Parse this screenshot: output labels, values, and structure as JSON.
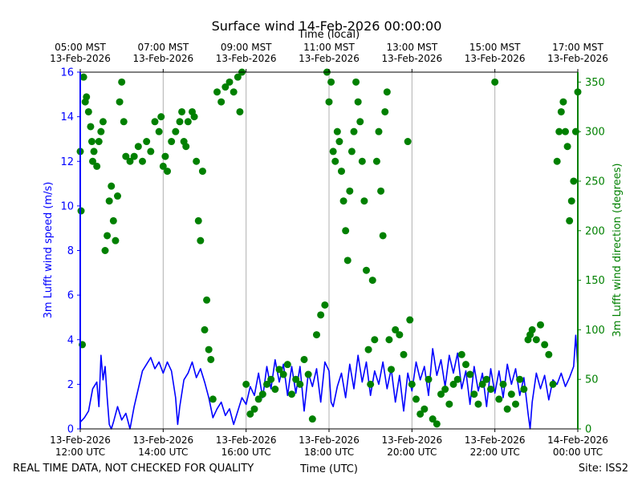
{
  "chart_data": {
    "type": "line+scatter",
    "title": "Surface wind 14-Feb-2026 00:00:00",
    "top_axis_label": "Time (local)",
    "xlabel": "Time (UTC)",
    "ylabel_left": "3m Lufft wind speed (m/s)",
    "ylabel_right": "3m Lufft wind direction (degrees)",
    "footer_left": "REAL TIME DATA, NOT CHECKED FOR QUALITY",
    "footer_right": "Site: ISS2",
    "x_range_hours": [
      0,
      12
    ],
    "ylim_left": [
      0,
      16
    ],
    "ylim_right": [
      0,
      360
    ],
    "grid": "vertical",
    "colors": {
      "speed": "#0000ff",
      "direction": "#008000",
      "grid": "#b0b0b0",
      "text": "#000000"
    },
    "top_ticks": [
      {
        "hour": 0,
        "line1": "05:00 MST",
        "line2": "13-Feb-2026"
      },
      {
        "hour": 2,
        "line1": "07:00 MST",
        "line2": "13-Feb-2026"
      },
      {
        "hour": 4,
        "line1": "09:00 MST",
        "line2": "13-Feb-2026"
      },
      {
        "hour": 6,
        "line1": "11:00 MST",
        "line2": "13-Feb-2026"
      },
      {
        "hour": 8,
        "line1": "13:00 MST",
        "line2": "13-Feb-2026"
      },
      {
        "hour": 10,
        "line1": "15:00 MST",
        "line2": "13-Feb-2026"
      },
      {
        "hour": 12,
        "line1": "17:00 MST",
        "line2": "13-Feb-2026"
      }
    ],
    "bottom_ticks": [
      {
        "hour": 0,
        "line1": "13-Feb-2026",
        "line2": "12:00 UTC"
      },
      {
        "hour": 2,
        "line1": "13-Feb-2026",
        "line2": "14:00 UTC"
      },
      {
        "hour": 4,
        "line1": "13-Feb-2026",
        "line2": "16:00 UTC"
      },
      {
        "hour": 6,
        "line1": "13-Feb-2026",
        "line2": "18:00 UTC"
      },
      {
        "hour": 8,
        "line1": "13-Feb-2026",
        "line2": "20:00 UTC"
      },
      {
        "hour": 10,
        "line1": "13-Feb-2026",
        "line2": "22:00 UTC"
      },
      {
        "hour": 12,
        "line1": "14-Feb-2026",
        "line2": "00:00 UTC"
      }
    ],
    "left_ticks": [
      0,
      2,
      4,
      6,
      8,
      10,
      12,
      14,
      16
    ],
    "right_ticks": [
      0,
      50,
      100,
      150,
      200,
      250,
      300,
      350
    ],
    "series": [
      {
        "name": "3m Lufft wind speed (m/s)",
        "kind": "line",
        "axis": "left",
        "points": [
          [
            0.0,
            0.3
          ],
          [
            0.1,
            0.5
          ],
          [
            0.2,
            0.8
          ],
          [
            0.3,
            1.8
          ],
          [
            0.4,
            2.1
          ],
          [
            0.45,
            1.0
          ],
          [
            0.5,
            3.3
          ],
          [
            0.55,
            2.2
          ],
          [
            0.6,
            2.8
          ],
          [
            0.65,
            1.4
          ],
          [
            0.7,
            0.2
          ],
          [
            0.75,
            0.0
          ],
          [
            0.8,
            0.3
          ],
          [
            0.9,
            1.0
          ],
          [
            1.0,
            0.4
          ],
          [
            1.1,
            0.7
          ],
          [
            1.2,
            0.0
          ],
          [
            1.25,
            0.5
          ],
          [
            1.3,
            1.0
          ],
          [
            1.4,
            1.8
          ],
          [
            1.5,
            2.6
          ],
          [
            1.6,
            2.9
          ],
          [
            1.7,
            3.2
          ],
          [
            1.8,
            2.7
          ],
          [
            1.9,
            3.0
          ],
          [
            2.0,
            2.5
          ],
          [
            2.1,
            3.0
          ],
          [
            2.2,
            2.6
          ],
          [
            2.3,
            1.4
          ],
          [
            2.35,
            0.2
          ],
          [
            2.4,
            1.0
          ],
          [
            2.5,
            2.2
          ],
          [
            2.6,
            2.5
          ],
          [
            2.7,
            3.0
          ],
          [
            2.8,
            2.3
          ],
          [
            2.9,
            2.7
          ],
          [
            3.0,
            2.1
          ],
          [
            3.1,
            1.4
          ],
          [
            3.2,
            0.5
          ],
          [
            3.3,
            0.9
          ],
          [
            3.4,
            1.2
          ],
          [
            3.5,
            0.6
          ],
          [
            3.6,
            0.9
          ],
          [
            3.7,
            0.2
          ],
          [
            3.8,
            0.8
          ],
          [
            3.9,
            1.4
          ],
          [
            4.0,
            1.1
          ],
          [
            4.1,
            1.9
          ],
          [
            4.2,
            1.5
          ],
          [
            4.3,
            2.5
          ],
          [
            4.4,
            1.4
          ],
          [
            4.5,
            2.8
          ],
          [
            4.6,
            1.8
          ],
          [
            4.7,
            3.1
          ],
          [
            4.8,
            2.1
          ],
          [
            4.9,
            2.9
          ],
          [
            5.0,
            1.5
          ],
          [
            5.1,
            2.8
          ],
          [
            5.2,
            1.6
          ],
          [
            5.3,
            2.8
          ],
          [
            5.4,
            0.8
          ],
          [
            5.5,
            2.5
          ],
          [
            5.6,
            1.9
          ],
          [
            5.7,
            2.7
          ],
          [
            5.8,
            1.2
          ],
          [
            5.9,
            3.0
          ],
          [
            6.0,
            2.6
          ],
          [
            6.05,
            1.2
          ],
          [
            6.1,
            1.0
          ],
          [
            6.2,
            1.9
          ],
          [
            6.3,
            2.5
          ],
          [
            6.4,
            1.4
          ],
          [
            6.5,
            2.9
          ],
          [
            6.6,
            1.8
          ],
          [
            6.7,
            3.3
          ],
          [
            6.8,
            2.1
          ],
          [
            6.9,
            3.0
          ],
          [
            7.0,
            1.5
          ],
          [
            7.1,
            2.6
          ],
          [
            7.2,
            2.0
          ],
          [
            7.3,
            3.0
          ],
          [
            7.4,
            1.8
          ],
          [
            7.5,
            2.7
          ],
          [
            7.6,
            1.2
          ],
          [
            7.7,
            2.4
          ],
          [
            7.8,
            0.8
          ],
          [
            7.9,
            2.5
          ],
          [
            8.0,
            1.7
          ],
          [
            8.1,
            3.0
          ],
          [
            8.2,
            2.2
          ],
          [
            8.3,
            2.8
          ],
          [
            8.4,
            1.5
          ],
          [
            8.5,
            3.6
          ],
          [
            8.6,
            2.4
          ],
          [
            8.7,
            3.1
          ],
          [
            8.8,
            1.9
          ],
          [
            8.9,
            3.3
          ],
          [
            9.0,
            2.5
          ],
          [
            9.1,
            3.4
          ],
          [
            9.2,
            1.8
          ],
          [
            9.3,
            2.6
          ],
          [
            9.4,
            1.1
          ],
          [
            9.5,
            2.8
          ],
          [
            9.6,
            1.7
          ],
          [
            9.7,
            2.5
          ],
          [
            9.8,
            1.0
          ],
          [
            9.9,
            2.7
          ],
          [
            10.0,
            1.6
          ],
          [
            10.1,
            2.6
          ],
          [
            10.2,
            1.4
          ],
          [
            10.3,
            2.9
          ],
          [
            10.4,
            2.0
          ],
          [
            10.5,
            2.7
          ],
          [
            10.6,
            1.5
          ],
          [
            10.7,
            2.3
          ],
          [
            10.8,
            0.7
          ],
          [
            10.85,
            0.0
          ],
          [
            10.9,
            1.2
          ],
          [
            11.0,
            2.5
          ],
          [
            11.1,
            1.8
          ],
          [
            11.2,
            2.4
          ],
          [
            11.3,
            1.3
          ],
          [
            11.4,
            2.2
          ],
          [
            11.5,
            2.0
          ],
          [
            11.6,
            2.5
          ],
          [
            11.7,
            1.9
          ],
          [
            11.8,
            2.3
          ],
          [
            11.9,
            2.8
          ],
          [
            11.95,
            4.2
          ],
          [
            12.0,
            2.8
          ]
        ]
      },
      {
        "name": "3m Lufft wind direction (degrees)",
        "kind": "scatter",
        "axis": "right",
        "points": [
          [
            0.0,
            280
          ],
          [
            0.02,
            220
          ],
          [
            0.05,
            85
          ],
          [
            0.08,
            355
          ],
          [
            0.12,
            330
          ],
          [
            0.15,
            335
          ],
          [
            0.2,
            320
          ],
          [
            0.25,
            305
          ],
          [
            0.28,
            290
          ],
          [
            0.3,
            270
          ],
          [
            0.33,
            280
          ],
          [
            0.4,
            265
          ],
          [
            0.45,
            290
          ],
          [
            0.5,
            300
          ],
          [
            0.55,
            310
          ],
          [
            0.6,
            180
          ],
          [
            0.65,
            195
          ],
          [
            0.7,
            230
          ],
          [
            0.75,
            245
          ],
          [
            0.8,
            210
          ],
          [
            0.85,
            190
          ],
          [
            0.9,
            235
          ],
          [
            0.95,
            330
          ],
          [
            1.0,
            350
          ],
          [
            1.05,
            310
          ],
          [
            1.1,
            275
          ],
          [
            1.2,
            270
          ],
          [
            1.3,
            275
          ],
          [
            1.4,
            285
          ],
          [
            1.5,
            270
          ],
          [
            1.6,
            290
          ],
          [
            1.7,
            280
          ],
          [
            1.8,
            310
          ],
          [
            1.9,
            300
          ],
          [
            1.95,
            315
          ],
          [
            2.0,
            265
          ],
          [
            2.05,
            275
          ],
          [
            2.1,
            260
          ],
          [
            2.2,
            290
          ],
          [
            2.3,
            300
          ],
          [
            2.4,
            310
          ],
          [
            2.45,
            320
          ],
          [
            2.5,
            290
          ],
          [
            2.55,
            285
          ],
          [
            2.6,
            310
          ],
          [
            2.7,
            320
          ],
          [
            2.75,
            315
          ],
          [
            2.8,
            270
          ],
          [
            2.85,
            210
          ],
          [
            2.9,
            190
          ],
          [
            2.95,
            260
          ],
          [
            3.0,
            100
          ],
          [
            3.05,
            130
          ],
          [
            3.1,
            80
          ],
          [
            3.15,
            70
          ],
          [
            3.2,
            30
          ],
          [
            3.3,
            340
          ],
          [
            3.4,
            330
          ],
          [
            3.5,
            345
          ],
          [
            3.6,
            350
          ],
          [
            3.7,
            340
          ],
          [
            3.8,
            355
          ],
          [
            3.85,
            320
          ],
          [
            3.9,
            360
          ],
          [
            4.0,
            45
          ],
          [
            4.1,
            15
          ],
          [
            4.2,
            20
          ],
          [
            4.3,
            30
          ],
          [
            4.4,
            35
          ],
          [
            4.5,
            45
          ],
          [
            4.6,
            50
          ],
          [
            4.7,
            40
          ],
          [
            4.8,
            60
          ],
          [
            4.9,
            55
          ],
          [
            5.0,
            65
          ],
          [
            5.1,
            35
          ],
          [
            5.2,
            50
          ],
          [
            5.3,
            45
          ],
          [
            5.4,
            70
          ],
          [
            5.5,
            55
          ],
          [
            5.6,
            10
          ],
          [
            5.7,
            95
          ],
          [
            5.8,
            115
          ],
          [
            5.9,
            125
          ],
          [
            5.95,
            360
          ],
          [
            6.0,
            330
          ],
          [
            6.05,
            350
          ],
          [
            6.1,
            280
          ],
          [
            6.15,
            270
          ],
          [
            6.2,
            300
          ],
          [
            6.25,
            290
          ],
          [
            6.3,
            260
          ],
          [
            6.35,
            230
          ],
          [
            6.4,
            200
          ],
          [
            6.45,
            170
          ],
          [
            6.5,
            240
          ],
          [
            6.55,
            280
          ],
          [
            6.6,
            300
          ],
          [
            6.65,
            350
          ],
          [
            6.7,
            330
          ],
          [
            6.75,
            310
          ],
          [
            6.8,
            270
          ],
          [
            6.85,
            230
          ],
          [
            6.9,
            160
          ],
          [
            6.95,
            80
          ],
          [
            7.0,
            45
          ],
          [
            7.05,
            150
          ],
          [
            7.1,
            90
          ],
          [
            7.15,
            270
          ],
          [
            7.2,
            300
          ],
          [
            7.25,
            240
          ],
          [
            7.3,
            195
          ],
          [
            7.35,
            320
          ],
          [
            7.4,
            340
          ],
          [
            7.45,
            90
          ],
          [
            7.5,
            60
          ],
          [
            7.6,
            100
          ],
          [
            7.7,
            95
          ],
          [
            7.8,
            75
          ],
          [
            7.9,
            290
          ],
          [
            7.95,
            110
          ],
          [
            8.0,
            45
          ],
          [
            8.1,
            30
          ],
          [
            8.2,
            15
          ],
          [
            8.3,
            20
          ],
          [
            8.4,
            50
          ],
          [
            8.5,
            10
          ],
          [
            8.6,
            5
          ],
          [
            8.7,
            35
          ],
          [
            8.8,
            40
          ],
          [
            8.9,
            25
          ],
          [
            9.0,
            45
          ],
          [
            9.1,
            50
          ],
          [
            9.2,
            75
          ],
          [
            9.3,
            65
          ],
          [
            9.4,
            55
          ],
          [
            9.5,
            35
          ],
          [
            9.6,
            25
          ],
          [
            9.7,
            45
          ],
          [
            9.8,
            50
          ],
          [
            9.9,
            40
          ],
          [
            10.0,
            350
          ],
          [
            10.1,
            30
          ],
          [
            10.2,
            45
          ],
          [
            10.3,
            20
          ],
          [
            10.4,
            35
          ],
          [
            10.5,
            25
          ],
          [
            10.6,
            50
          ],
          [
            10.7,
            40
          ],
          [
            10.8,
            90
          ],
          [
            10.85,
            95
          ],
          [
            10.9,
            100
          ],
          [
            11.0,
            90
          ],
          [
            11.1,
            105
          ],
          [
            11.2,
            85
          ],
          [
            11.3,
            75
          ],
          [
            11.4,
            45
          ],
          [
            11.5,
            270
          ],
          [
            11.55,
            300
          ],
          [
            11.6,
            320
          ],
          [
            11.65,
            330
          ],
          [
            11.7,
            300
          ],
          [
            11.75,
            285
          ],
          [
            11.8,
            210
          ],
          [
            11.85,
            230
          ],
          [
            11.9,
            250
          ],
          [
            11.95,
            300
          ],
          [
            12.0,
            340
          ]
        ]
      }
    ]
  }
}
